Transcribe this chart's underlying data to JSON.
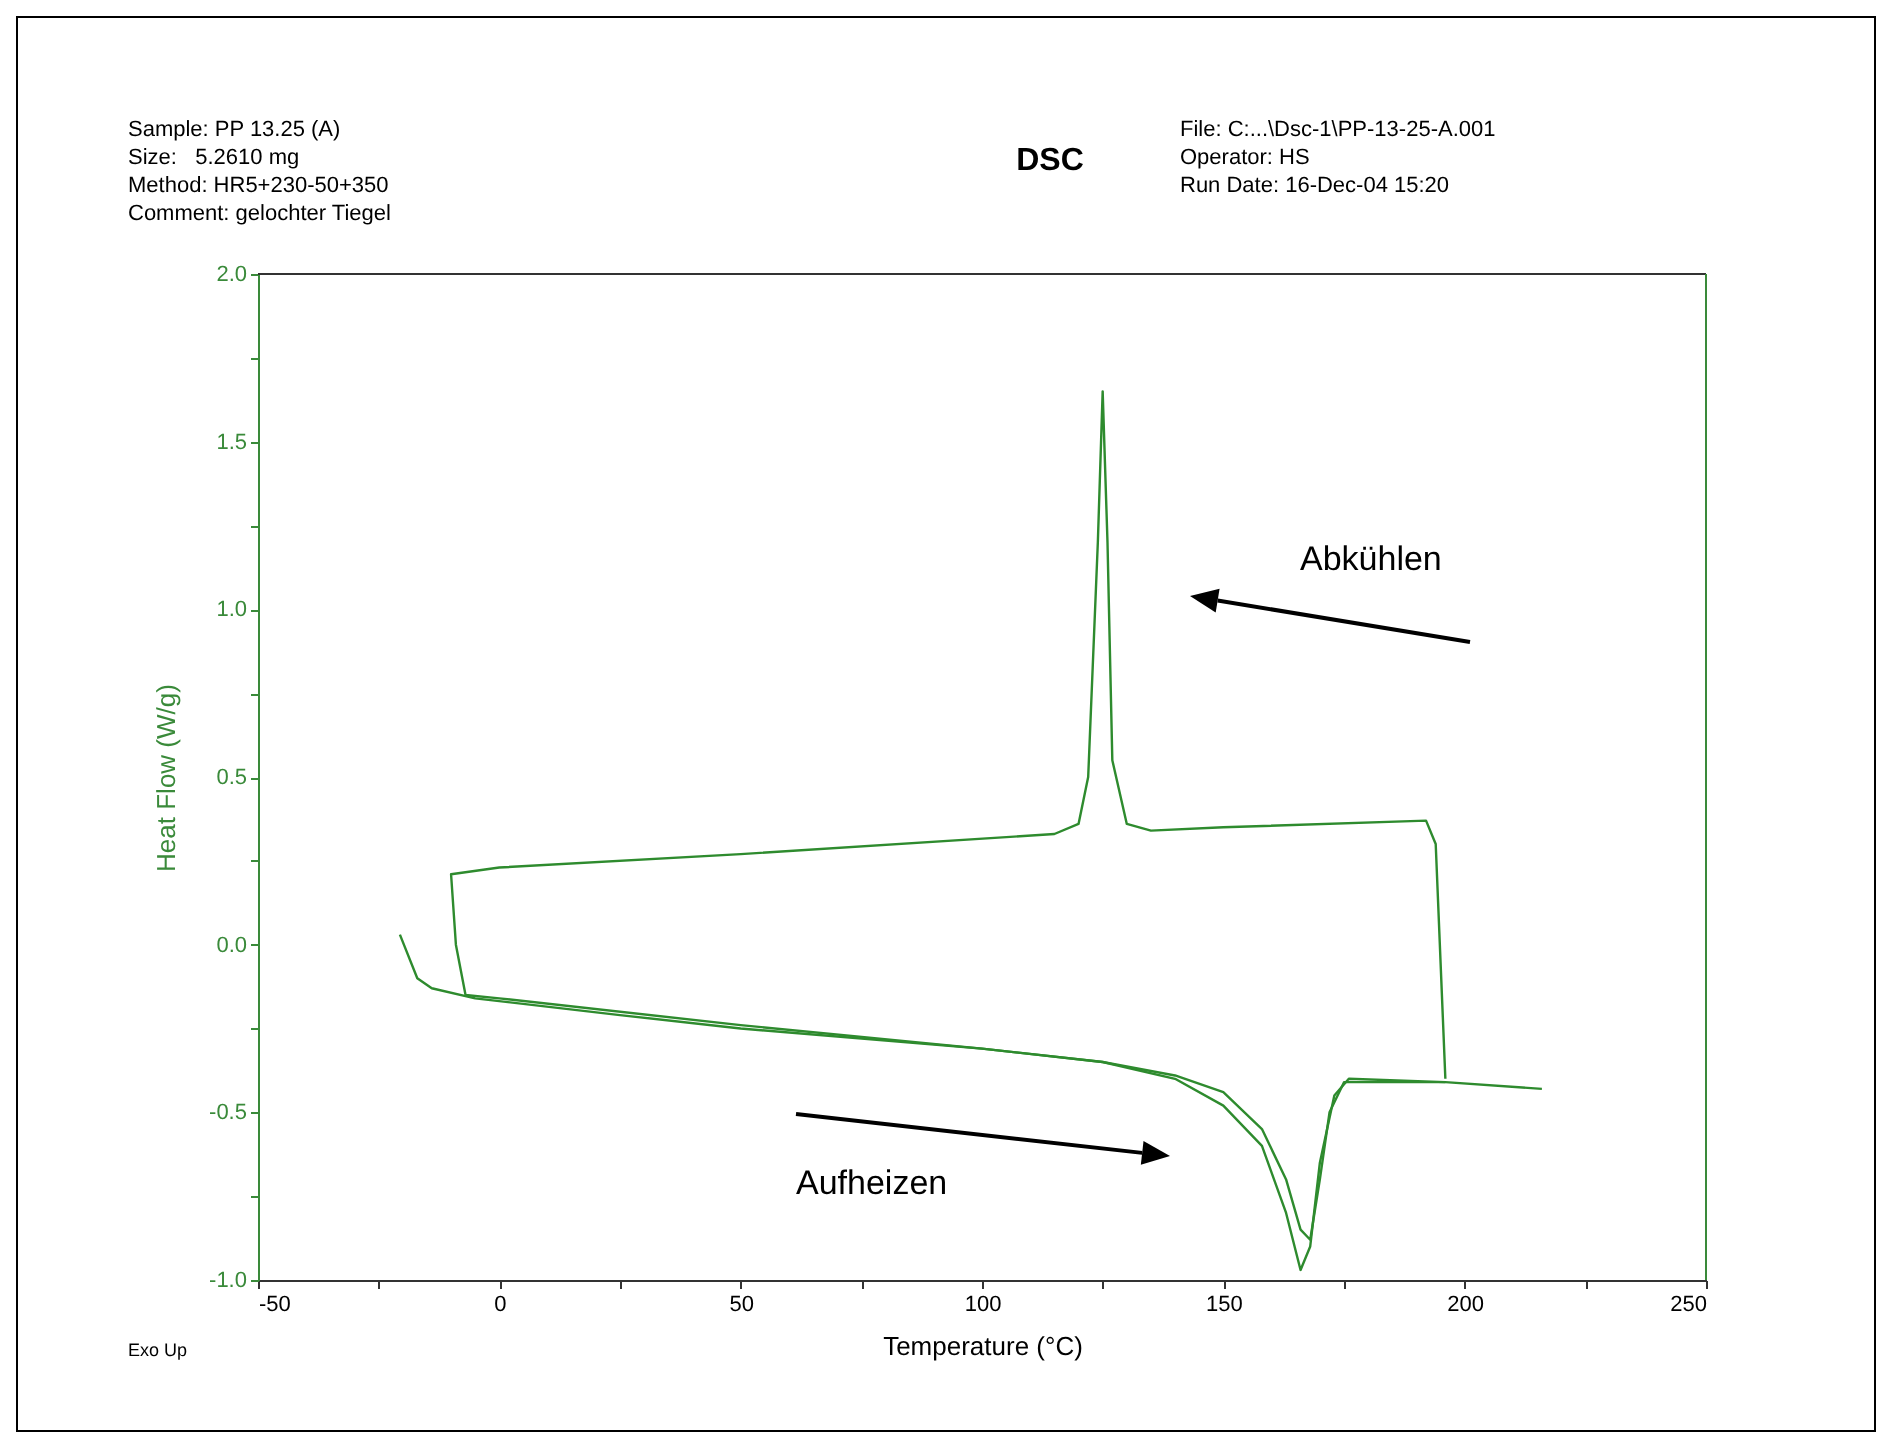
{
  "chart_data": {
    "type": "line",
    "title": "DSC",
    "xlabel": "Temperature (°C)",
    "ylabel": "Heat Flow (W/g)",
    "xlim": [
      -50,
      250
    ],
    "xticks": [
      -50,
      {
        "value": -25,
        "label": null
      },
      0,
      {
        "value": 25,
        "label": null
      },
      50,
      {
        "value": 75,
        "label": null
      },
      100,
      {
        "value": 125,
        "label": null
      },
      150,
      {
        "value": 175,
        "label": null
      },
      200,
      {
        "value": 225,
        "label": null
      },
      250
    ],
    "ylim": [
      -1.0,
      2.0
    ],
    "yticks": [
      {
        "value": -1.0,
        "label": "-1.0"
      },
      {
        "value": -0.75,
        "label": null
      },
      -0.5,
      {
        "value": -0.25,
        "label": null
      },
      {
        "value": 0,
        "label": "0.0"
      },
      {
        "value": 0.25,
        "label": null
      },
      0.5,
      {
        "value": 0.75,
        "label": null
      },
      {
        "value": 1.0,
        "label": "1.0"
      },
      {
        "value": 1.25,
        "label": null
      },
      1.5,
      {
        "value": 1.75,
        "label": null
      },
      {
        "value": 2.0,
        "label": "2.0"
      }
    ],
    "grid": false,
    "legend": false,
    "marker": "none",
    "line_style": "solid",
    "annotations": [
      "Sample: PP 13.25 (A)",
      "Size:   5.2610 mg",
      "Method: HR5+230-50+350",
      "Comment: gelochter Tiegel",
      "File: C:...\\Dsc-1\\PP-13-25-A.001",
      "Operator: HS",
      "Run Date: 16-Dec-04 15:20",
      "Exo Up",
      "Abkühlen",
      "Aufheizen"
    ],
    "series": [
      {
        "color": "#2e8b2e",
        "x": [
          -20.6,
          -17,
          -14,
          -5,
          25,
          50,
          100,
          125,
          140,
          150,
          158,
          163,
          166,
          168,
          170,
          173,
          176,
          196,
          216
        ],
        "values": [
          0.03,
          -0.1,
          -0.13,
          -0.16,
          -0.21,
          -0.25,
          -0.31,
          -0.35,
          -0.4,
          -0.48,
          -0.6,
          -0.8,
          -0.97,
          -0.9,
          -0.65,
          -0.45,
          -0.4,
          -0.41,
          -0.43
        ]
      },
      {
        "color": "#2e8b2e",
        "x": [
          196,
          194,
          192,
          150,
          135,
          130,
          127,
          126,
          125,
          124,
          122,
          120,
          115,
          50,
          0,
          -10,
          -9,
          -7,
          0,
          50,
          100,
          125,
          140,
          150,
          158,
          163,
          166,
          168,
          170,
          172,
          175,
          196
        ],
        "values": [
          -0.4,
          0.3,
          0.37,
          0.35,
          0.34,
          0.36,
          0.55,
          1.2,
          1.65,
          1.2,
          0.5,
          0.36,
          0.33,
          0.27,
          0.23,
          0.21,
          0.0,
          -0.15,
          -0.16,
          -0.24,
          -0.31,
          -0.35,
          -0.39,
          -0.44,
          -0.55,
          -0.7,
          -0.85,
          -0.88,
          -0.7,
          -0.5,
          -0.41,
          -0.41
        ]
      }
    ]
  }
}
